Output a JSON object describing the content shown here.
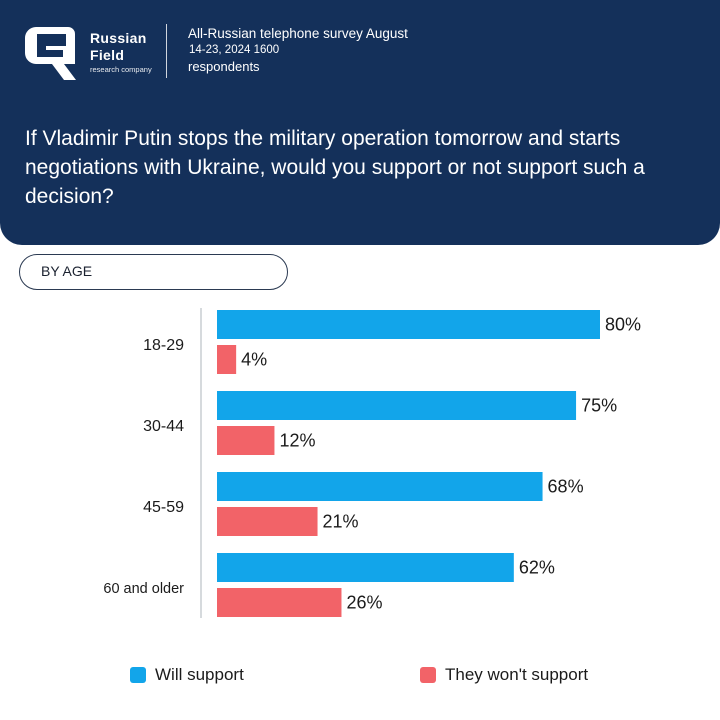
{
  "header": {
    "brand_line1": "Russian",
    "brand_line2": "Field",
    "brand_sub": "research company",
    "survey_title": "All-Russian telephone survey August",
    "survey_dates": "14-23, 2024 1600",
    "survey_respondents": "respondents",
    "question": "If Vladimir Putin stops the military operation tomorrow and starts negotiations with Ukraine, would you support or not support such a decision?"
  },
  "filter": {
    "label": "BY AGE"
  },
  "colors": {
    "header_bg": "#14305a",
    "will_support": "#12a5ea",
    "wont_support": "#f26368"
  },
  "chart_data": {
    "type": "bar",
    "orientation": "horizontal",
    "categories": [
      "18-29",
      "30-44",
      "45-59",
      "60 and older"
    ],
    "series": [
      {
        "name": "Will support",
        "values": [
          80,
          75,
          68,
          62
        ],
        "labels": [
          "80%",
          "75%",
          "68%",
          "62%"
        ]
      },
      {
        "name": "They won't support",
        "values": [
          4,
          12,
          21,
          26
        ],
        "labels": [
          "4%",
          "12%",
          "21%",
          "26%"
        ]
      }
    ],
    "unit": "%",
    "xlim": [
      0,
      80
    ],
    "grid": false,
    "legend": "bottom"
  },
  "legend": {
    "will_support": "Will support",
    "wont_support": "They won't support"
  }
}
